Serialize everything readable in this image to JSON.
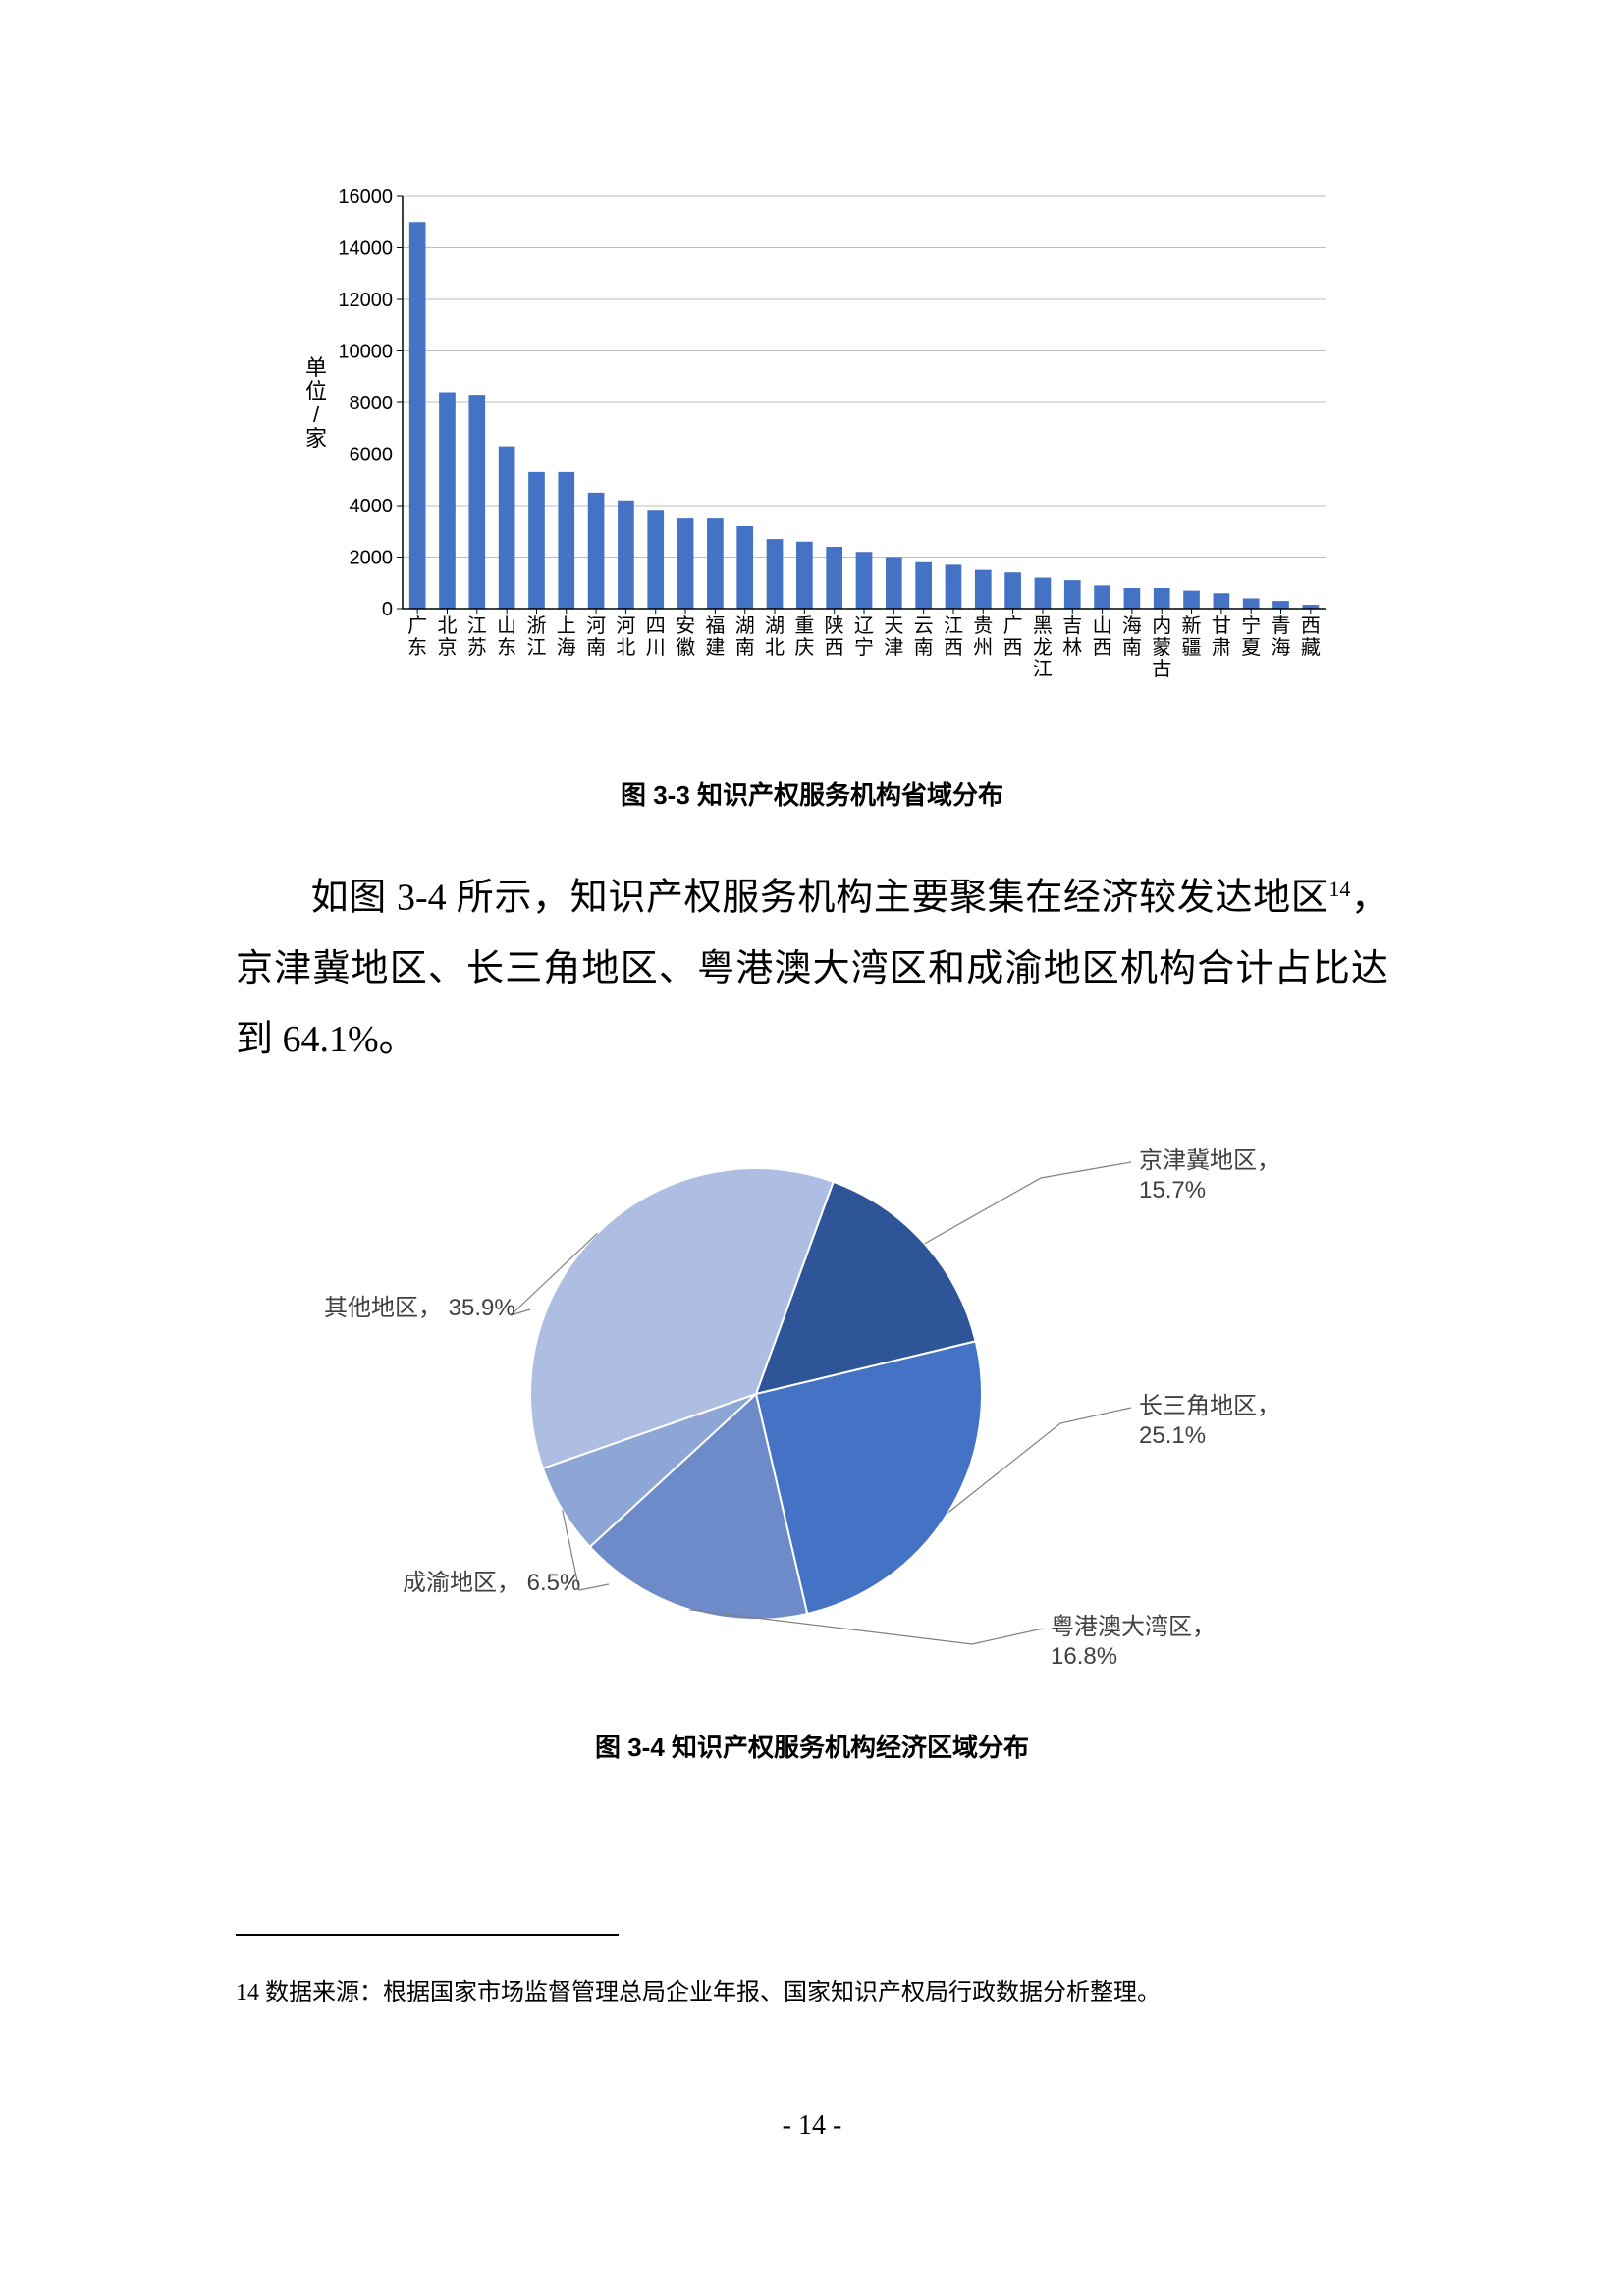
{
  "bar_chart": {
    "type": "bar",
    "ylabel": "单位/家",
    "ylabel_fontsize": 22,
    "ylim": [
      0,
      16000
    ],
    "ytick_step": 2000,
    "yticks": [
      0,
      2000,
      4000,
      6000,
      8000,
      10000,
      12000,
      14000,
      16000
    ],
    "categories": [
      "广东",
      "北京",
      "江苏",
      "山东",
      "浙江",
      "上海",
      "河南",
      "河北",
      "四川",
      "安徽",
      "福建",
      "湖南",
      "湖北",
      "重庆",
      "陕西",
      "辽宁",
      "天津",
      "云南",
      "江西",
      "贵州",
      "广西",
      "黑龙江",
      "吉林",
      "山西",
      "海南",
      "内蒙古",
      "新疆",
      "甘肃",
      "宁夏",
      "青海",
      "西藏"
    ],
    "values": [
      15000,
      8400,
      8300,
      6300,
      5300,
      5300,
      4500,
      4200,
      3800,
      3500,
      3500,
      3200,
      2700,
      2600,
      2400,
      2200,
      2000,
      1800,
      1700,
      1500,
      1400,
      1200,
      1100,
      900,
      800,
      800,
      700,
      600,
      400,
      300,
      150
    ],
    "bar_color": "#4472c4",
    "bar_width": 0.55,
    "axis_color": "#000000",
    "grid_color": "#bfbfbf",
    "tick_fontsize": 20,
    "xtick_fontsize": 20,
    "background_color": "#ffffff",
    "caption": "图 3-3  知识产权服务机构省域分布"
  },
  "paragraph": {
    "t1": "如图 3-4 所示，知识产权服务机构主要聚集在经济较发达地区",
    "sup": "14",
    "t2": "，京津冀地区、长三角地区、粤港澳大湾区和成渝地区机构合计占比达到 64.1%。"
  },
  "pie_chart": {
    "type": "pie",
    "slices": [
      {
        "label": "京津冀地区，",
        "value_label": "15.7%",
        "value": 15.7,
        "color": "#2e5597"
      },
      {
        "label": "长三角地区，",
        "value_label": "25.1%",
        "value": 25.1,
        "color": "#4472c4"
      },
      {
        "label": "粤港澳大湾区，",
        "value_label": "16.8%",
        "value": 16.8,
        "color": "#6d8bc9"
      },
      {
        "label": "成渝地区，",
        "value_label": "6.5%",
        "value": 6.5,
        "color": "#8da6d6"
      },
      {
        "label": "其他地区，",
        "value_label": "35.9%",
        "value": 35.9,
        "color": "#aebde2"
      }
    ],
    "start_angle_deg": -70,
    "separator_color": "#ffffff",
    "separator_width": 2,
    "label_fontsize": 24,
    "label_color": "#404040",
    "leader_color": "#808080",
    "background_color": "#ffffff",
    "caption": "图 3-4  知识产权服务机构经济区域分布"
  },
  "footnote": {
    "marker": "14",
    "text": " 数据来源：根据国家市场监督管理总局企业年报、国家知识产权局行政数据分析整理。"
  },
  "page_number": "- 14 -"
}
